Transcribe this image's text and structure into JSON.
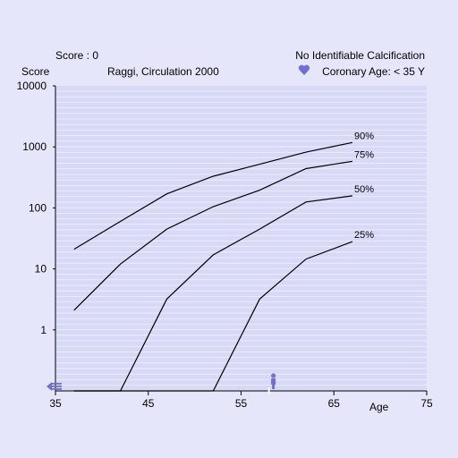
{
  "header": {
    "score_text": "Score : 0",
    "status_text": "No Identifiable Calcification",
    "coronary_age_text": "Coronary Age: < 35 Y",
    "heart_icon": "heart-icon",
    "patient_marker_icon": "person-icon",
    "nav_arrow_icon": "left-arrow-icon"
  },
  "colors": {
    "background": "#e6e6fb",
    "plot_background": "#d8d8f7",
    "gridline": "#ececff",
    "series_line": "#000000",
    "icon": "#6f6fd6"
  },
  "chart_data": {
    "type": "line",
    "title": "Raggi, Circulation 2000",
    "xlabel": "Age",
    "ylabel": "Score",
    "y_scale": "log",
    "xlim": [
      35,
      75
    ],
    "ylim": [
      0.1,
      10000
    ],
    "x_ticks": [
      "35",
      "45",
      "55",
      "65",
      "75"
    ],
    "y_ticks": [
      "10000",
      "1000",
      "100",
      "10",
      "1"
    ],
    "grid": true,
    "patient_age": 58,
    "patient_score": 0,
    "series": [
      {
        "name": "90%",
        "x": [
          37,
          42,
          47,
          52,
          57,
          62,
          67
        ],
        "y": [
          21,
          60,
          170,
          330,
          520,
          820,
          1180
        ]
      },
      {
        "name": "75%",
        "x": [
          37,
          42,
          47,
          52,
          57,
          62,
          67
        ],
        "y": [
          2.1,
          12,
          45,
          105,
          195,
          440,
          580
        ]
      },
      {
        "name": "50%",
        "x": [
          37,
          42,
          47,
          52,
          57,
          62,
          67
        ],
        "y": [
          0.1,
          0.1,
          3.2,
          17,
          45,
          125,
          158
        ]
      },
      {
        "name": "25%",
        "x": [
          37,
          42,
          47,
          52,
          57,
          62,
          67
        ],
        "y": [
          0.1,
          0.1,
          0.1,
          0.1,
          3.2,
          14.5,
          28
        ]
      }
    ]
  }
}
